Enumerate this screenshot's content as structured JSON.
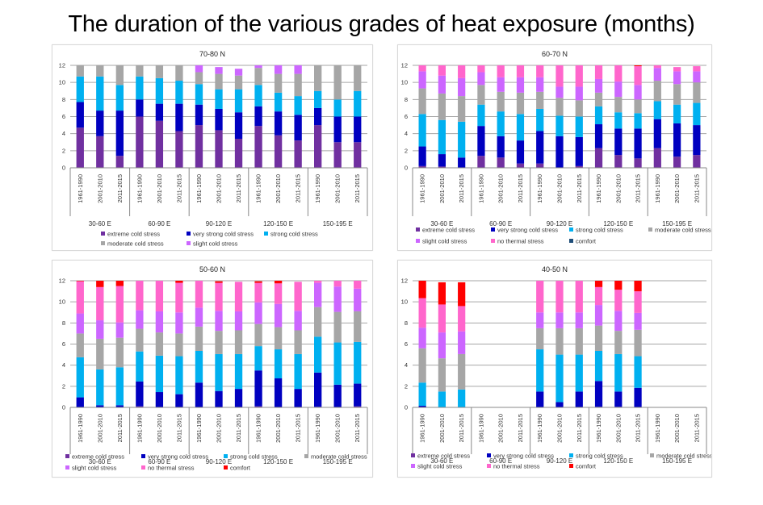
{
  "title": "The duration of the various grades of heat exposure (months)",
  "categories": {
    "periods": [
      "1961-1990",
      "2001-2010",
      "2011-2015"
    ],
    "groups": [
      "30-60 E",
      "60-90 E",
      "90-120 E",
      "120-150 E",
      "150-195 E"
    ]
  },
  "stress_classes": [
    {
      "key": "extreme",
      "label": "extreme cold stress",
      "color": "#7030A0"
    },
    {
      "key": "very_strong",
      "label": "very strong cold stress",
      "color": "#0000C0"
    },
    {
      "key": "strong",
      "label": "strong cold stress",
      "color": "#00B0F0"
    },
    {
      "key": "moderate",
      "label": "moderate cold stress",
      "color": "#A6A6A6"
    },
    {
      "key": "slight",
      "label": "slight cold stress",
      "color": "#CC66FF"
    },
    {
      "key": "no_thermal",
      "label": "no thermal stress",
      "color": "#FF66CC"
    },
    {
      "key": "comfort",
      "label": "comfort",
      "color": "#FF0000"
    }
  ],
  "chart_data": [
    {
      "type": "bar",
      "stacked": true,
      "title": "70-80 N",
      "ylim": [
        0,
        12
      ],
      "yticks": [
        0,
        2,
        4,
        6,
        8,
        10,
        12
      ],
      "grid": true,
      "legend": "bottom",
      "legend_keys": [
        "extreme",
        "very_strong",
        "strong",
        "moderate",
        "slight"
      ],
      "comfort_legend_color": null,
      "series": [
        {
          "name": "extreme cold stress",
          "values": [
            4.7,
            3.7,
            1.4,
            6.0,
            5.5,
            4.3,
            5.0,
            4.4,
            3.4,
            4.9,
            3.8,
            3.2,
            5.0,
            3.0,
            3.0
          ]
        },
        {
          "name": "very strong cold stress",
          "values": [
            3.0,
            3.0,
            5.3,
            2.0,
            2.0,
            3.2,
            2.4,
            2.5,
            3.1,
            2.3,
            2.8,
            3.0,
            2.0,
            3.0,
            3.0
          ]
        },
        {
          "name": "strong cold stress",
          "values": [
            3.0,
            4.0,
            3.0,
            2.7,
            3.0,
            2.7,
            2.4,
            2.3,
            2.7,
            2.5,
            2.2,
            2.2,
            2.0,
            2.0,
            3.0
          ]
        },
        {
          "name": "moderate cold stress",
          "values": [
            1.3,
            1.3,
            2.3,
            1.3,
            1.5,
            1.8,
            1.4,
            1.8,
            1.6,
            2.0,
            2.2,
            2.6,
            3.0,
            4.0,
            3.0
          ]
        },
        {
          "name": "slight cold stress",
          "values": [
            0,
            0,
            0,
            0,
            0,
            0,
            0.8,
            0.8,
            0.8,
            0.3,
            1.0,
            1.0,
            0,
            0,
            0
          ]
        },
        {
          "name": "no thermal stress",
          "values": [
            0,
            0,
            0,
            0,
            0,
            0,
            0,
            0,
            0,
            0,
            0,
            0,
            0,
            0,
            0
          ]
        },
        {
          "name": "comfort",
          "values": [
            0,
            0,
            0,
            0,
            0,
            0,
            0,
            0,
            0,
            0,
            0,
            0,
            0,
            0,
            0
          ]
        }
      ]
    },
    {
      "type": "bar",
      "stacked": true,
      "title": "60-70 N",
      "ylim": [
        0,
        12
      ],
      "yticks": [
        0,
        2,
        4,
        6,
        8,
        10,
        12
      ],
      "grid": true,
      "legend": "bottom",
      "legend_keys": [
        "extreme",
        "very_strong",
        "strong",
        "moderate",
        "slight",
        "no_thermal",
        "comfort"
      ],
      "comfort_legend_color": "#1F4E79",
      "series": [
        {
          "name": "extreme cold stress",
          "values": [
            0.2,
            0.15,
            0,
            1.4,
            1.2,
            0.5,
            0.5,
            0,
            0.2,
            2.3,
            1.5,
            1.1,
            2.3,
            1.3,
            1.5
          ]
        },
        {
          "name": "very strong cold stress",
          "values": [
            2.3,
            1.45,
            1.2,
            3.5,
            2.5,
            2.7,
            3.8,
            3.7,
            3.4,
            2.8,
            3.1,
            3.5,
            3.4,
            3.9,
            3.5
          ]
        },
        {
          "name": "strong cold stress",
          "values": [
            3.8,
            4.0,
            4.2,
            2.5,
            2.9,
            3.1,
            2.6,
            2.4,
            2.4,
            2.1,
            1.9,
            1.8,
            2.1,
            2.2,
            2.6
          ]
        },
        {
          "name": "moderate cold stress",
          "values": [
            3.0,
            3.1,
            3.0,
            2.3,
            2.3,
            2.5,
            2.0,
            2.1,
            1.9,
            1.6,
            1.8,
            1.6,
            2.4,
            2.4,
            2.4
          ]
        },
        {
          "name": "slight cold stress",
          "values": [
            2.0,
            2.1,
            2.1,
            1.5,
            1.7,
            1.8,
            1.7,
            1.3,
            1.6,
            1.6,
            1.8,
            1.7,
            1.5,
            1.5,
            1.3
          ]
        },
        {
          "name": "no thermal stress",
          "values": [
            0.7,
            1.2,
            1.5,
            0.8,
            1.4,
            1.4,
            1.4,
            2.5,
            2.5,
            1.6,
            1.9,
            2.2,
            0.3,
            0.5,
            0.6
          ]
        },
        {
          "name": "comfort",
          "values": [
            0,
            0,
            0,
            0,
            0,
            0,
            0,
            0,
            0,
            0,
            0,
            0.1,
            0,
            0,
            0
          ]
        }
      ]
    },
    {
      "type": "bar",
      "stacked": true,
      "title": "50-60 N",
      "ylim": [
        0,
        12
      ],
      "yticks": [
        0,
        2,
        4,
        6,
        8,
        10,
        12
      ],
      "grid": true,
      "legend": "bottom",
      "legend_keys": [
        "extreme",
        "very_strong",
        "strong",
        "moderate",
        "slight",
        "no_thermal",
        "comfort"
      ],
      "comfort_legend_color": null,
      "series": [
        {
          "name": "extreme cold stress",
          "values": [
            0,
            0,
            0,
            0.1,
            0,
            0,
            0,
            0,
            0,
            0.1,
            0,
            0,
            0.05,
            0,
            0.1
          ]
        },
        {
          "name": "very strong cold stress",
          "values": [
            0.95,
            0.2,
            0.2,
            2.35,
            1.45,
            1.25,
            2.35,
            1.55,
            1.75,
            3.4,
            2.75,
            1.75,
            3.25,
            2.15,
            2.15
          ]
        },
        {
          "name": "strong cold stress",
          "values": [
            3.8,
            3.4,
            3.6,
            2.85,
            3.45,
            3.6,
            3.0,
            3.5,
            3.3,
            2.3,
            2.75,
            3.3,
            3.4,
            4.0,
            3.95
          ]
        },
        {
          "name": "moderate cold stress",
          "values": [
            2.25,
            2.9,
            2.8,
            2.15,
            2.2,
            2.15,
            2.3,
            2.2,
            2.25,
            2.1,
            2.1,
            2.25,
            2.8,
            2.9,
            2.9
          ]
        },
        {
          "name": "slight cold stress",
          "values": [
            1.9,
            1.75,
            1.45,
            1.75,
            2.0,
            2.0,
            1.8,
            1.9,
            1.8,
            2.05,
            2.2,
            1.85,
            2.3,
            2.4,
            2.15
          ]
        },
        {
          "name": "no thermal stress",
          "values": [
            3.05,
            3.15,
            3.45,
            2.8,
            2.9,
            2.8,
            2.55,
            2.65,
            2.8,
            1.85,
            1.95,
            2.75,
            0.2,
            0.55,
            0.75
          ]
        },
        {
          "name": "comfort",
          "values": [
            0.05,
            0.6,
            0.5,
            0,
            0,
            0.2,
            0,
            0.15,
            0,
            0.15,
            0.25,
            0,
            0,
            0,
            0
          ]
        }
      ]
    },
    {
      "type": "bar",
      "stacked": true,
      "title": "40-50 N",
      "ylim": [
        0,
        12
      ],
      "yticks": [
        0,
        2,
        4,
        6,
        8,
        10,
        12
      ],
      "grid": true,
      "legend": "bottom",
      "legend_keys": [
        "extreme",
        "very_strong",
        "strong",
        "moderate",
        "slight",
        "no_thermal",
        "comfort"
      ],
      "comfort_legend_color": null,
      "series": [
        {
          "name": "extreme cold stress",
          "values": [
            0,
            0,
            0,
            0,
            0,
            0,
            0,
            0,
            0,
            0.05,
            0.05,
            0,
            0,
            0,
            0
          ]
        },
        {
          "name": "very strong cold stress",
          "values": [
            0.15,
            0,
            0,
            0,
            0,
            0,
            1.5,
            0.5,
            1.5,
            2.45,
            1.45,
            1.85,
            0,
            0,
            0
          ]
        },
        {
          "name": "strong cold stress",
          "values": [
            2.2,
            1.5,
            1.7,
            0,
            0,
            0,
            4.0,
            4.5,
            3.5,
            2.85,
            3.55,
            3.0,
            0,
            0,
            0
          ]
        },
        {
          "name": "moderate cold stress",
          "values": [
            3.25,
            3.15,
            3.35,
            0,
            0,
            0,
            2.0,
            2.5,
            2.5,
            2.4,
            2.2,
            2.5,
            0,
            0,
            0
          ]
        },
        {
          "name": "slight cold stress",
          "values": [
            1.95,
            2.45,
            2.15,
            0,
            0,
            0,
            1.5,
            1.5,
            1.5,
            1.95,
            1.9,
            1.6,
            0,
            0,
            0
          ]
        },
        {
          "name": "no thermal stress",
          "values": [
            2.8,
            2.65,
            2.4,
            0,
            0,
            0,
            3.0,
            3.0,
            3.0,
            1.7,
            2.0,
            2.05,
            0,
            0,
            0
          ]
        },
        {
          "name": "comfort",
          "values": [
            1.65,
            2.1,
            2.25,
            0,
            0,
            0,
            0,
            0,
            0,
            0.6,
            0.85,
            1.0,
            0,
            0,
            0
          ]
        }
      ]
    }
  ]
}
